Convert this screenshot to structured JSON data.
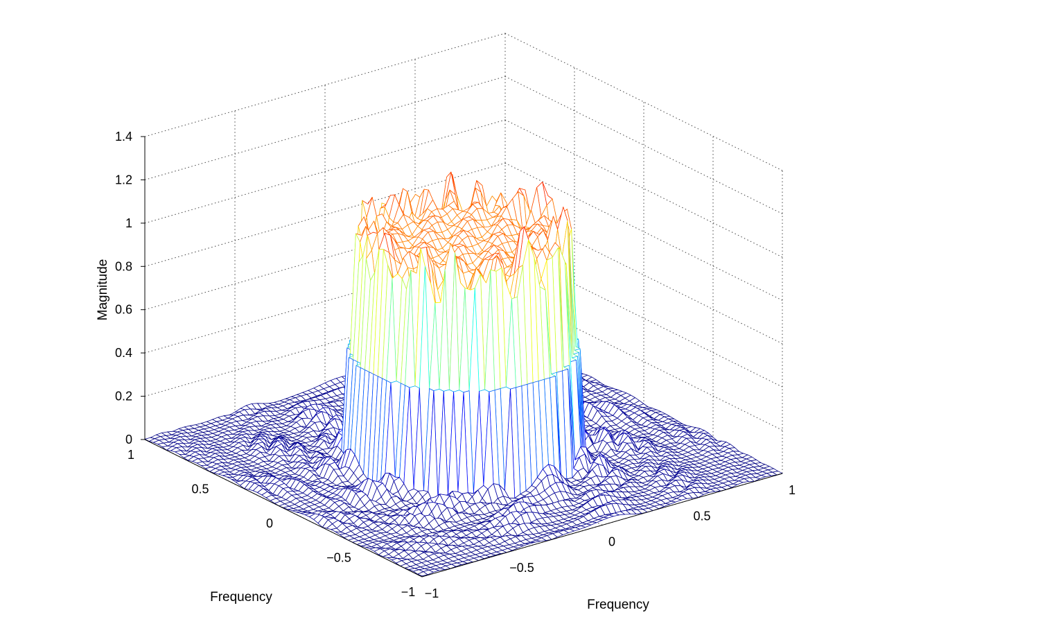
{
  "chart_data": {
    "type": "mesh",
    "title": "",
    "xlabel": "Frequency",
    "ylabel": "Frequency",
    "zlabel": "Magnitude",
    "xlim": [
      -1,
      1
    ],
    "ylim": [
      -1,
      1
    ],
    "zlim": [
      0,
      1.4
    ],
    "x_ticks": [
      "−1",
      "−0.5",
      "0",
      "0.5",
      "1"
    ],
    "y_ticks": [
      "−1",
      "−0.5",
      "0",
      "0.5",
      "1"
    ],
    "z_ticks": [
      "0",
      "0.2",
      "0.4",
      "0.6",
      "0.8",
      "1",
      "1.2",
      "1.4"
    ],
    "grid": true,
    "colormap": "jet",
    "passband": {
      "shape": "circle",
      "radius": 0.5,
      "level": 1.0,
      "ripple": 0.15
    },
    "stopband_level": 0.0,
    "mesh_resolution": 64
  }
}
